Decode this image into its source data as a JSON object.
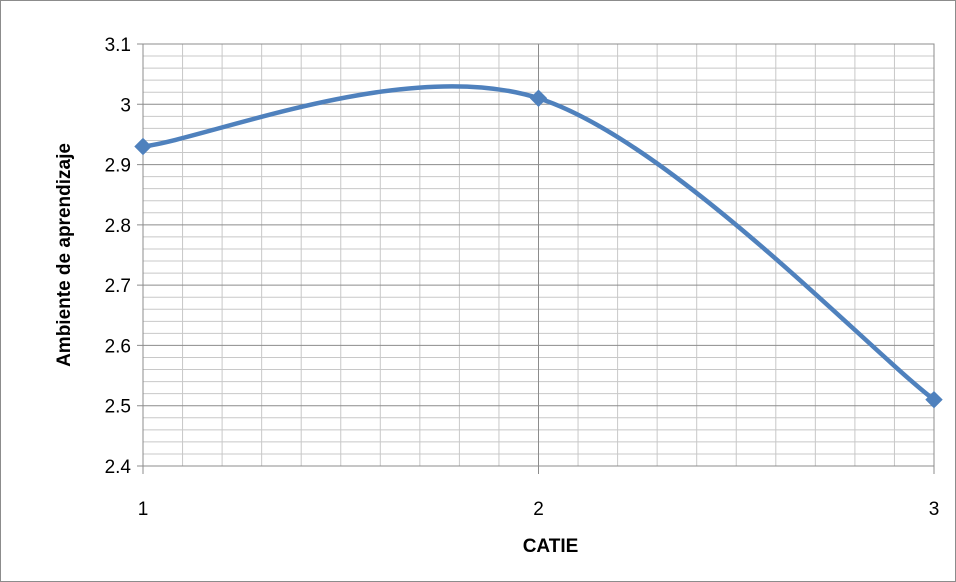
{
  "chart_data": {
    "type": "line",
    "title": "",
    "xlabel": "CATIE",
    "ylabel": "Ambiente de aprendizaje",
    "x": [
      1,
      2,
      3
    ],
    "series": [
      {
        "values": [
          2.93,
          3.01,
          2.51
        ]
      }
    ],
    "xlim": [
      1,
      3
    ],
    "ylim": [
      2.4,
      3.1
    ],
    "x_ticks": [
      "1",
      "2",
      "3"
    ],
    "y_ticks": [
      "2.4",
      "2.5",
      "2.6",
      "2.7",
      "2.8",
      "2.9",
      "3",
      "3.1"
    ],
    "smooth": true,
    "marker": "diamond",
    "grid": "major and minor",
    "legend": "none",
    "colors": {
      "series": "#4f81bd",
      "grid_major": "#8c8c8c",
      "grid_minor": "#c8c8c8"
    }
  }
}
